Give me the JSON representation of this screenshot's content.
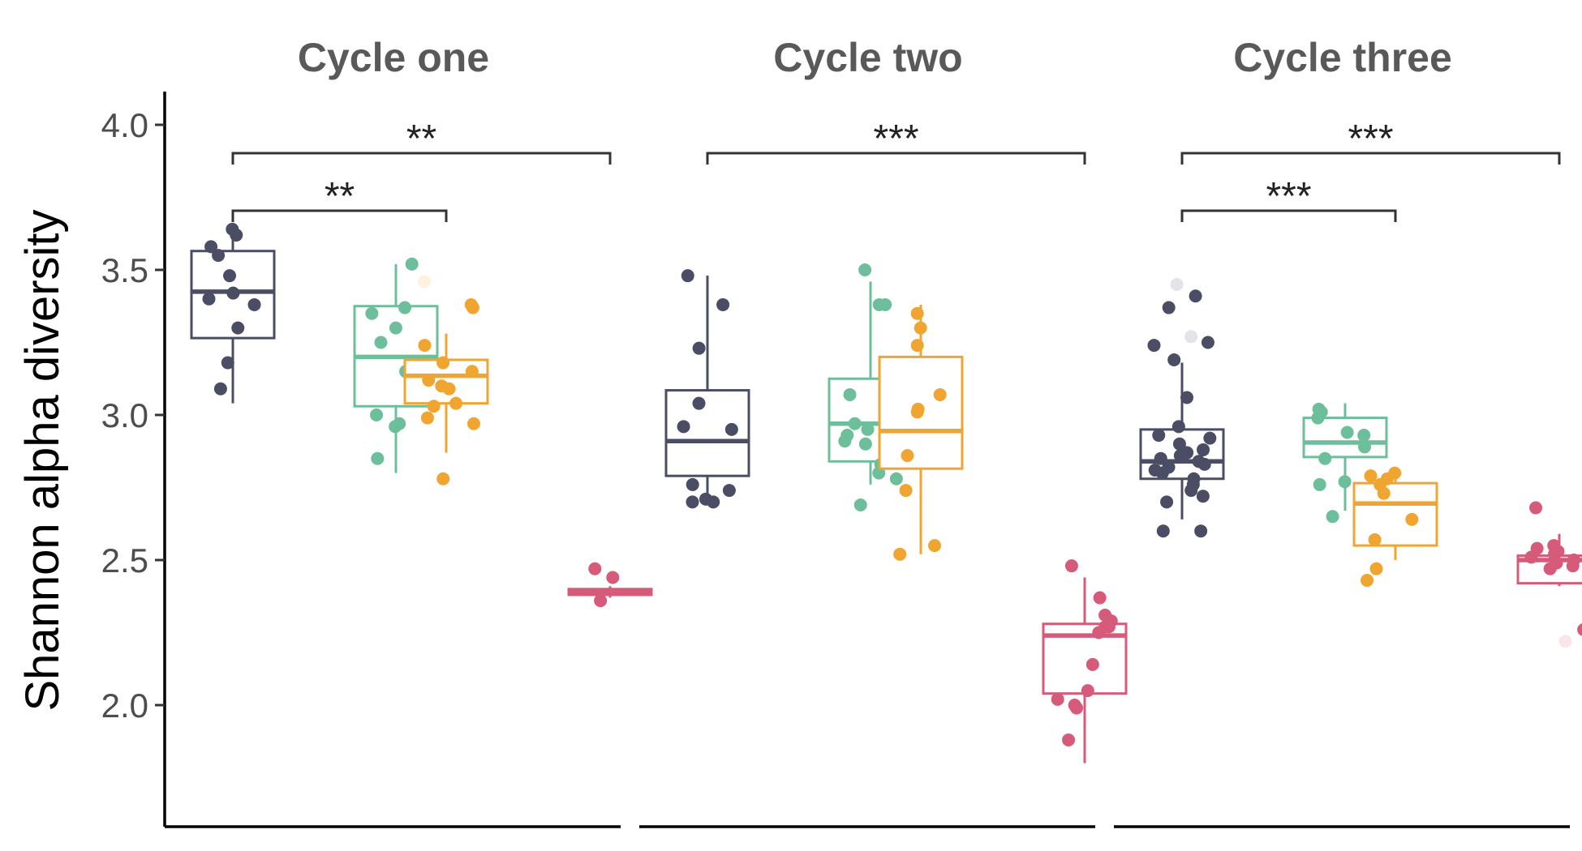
{
  "chart_data": {
    "type": "boxplot",
    "ylabel": "Shannon alpha diversity",
    "ylim": [
      1.6,
      4.1
    ],
    "yticks": [
      "2.0",
      "2.5",
      "3.0",
      "3.5",
      "4.0"
    ],
    "grid": false,
    "legend": "none",
    "group_colors": [
      "#4a4d63",
      "#6dbf9c",
      "#f0a530",
      "#d65a7a"
    ],
    "panels": [
      {
        "title": "Cycle one",
        "groups": [
          {
            "q1": 3.265,
            "median": 3.425,
            "q3": 3.565,
            "whisker_low": 3.04,
            "whisker_high": 3.64,
            "points": [
              3.64,
              3.62,
              3.58,
              3.55,
              3.48,
              3.42,
              3.4,
              3.38,
              3.3,
              3.18,
              3.09
            ],
            "outliers": []
          },
          {
            "q1": 3.03,
            "median": 3.2,
            "q3": 3.375,
            "whisker_low": 2.8,
            "whisker_high": 3.52,
            "points": [
              3.52,
              3.37,
              3.35,
              3.3,
              3.25,
              3.15,
              3.0,
              2.97,
              2.96,
              2.85
            ],
            "outliers": []
          },
          {
            "q1": 3.04,
            "median": 3.135,
            "q3": 3.19,
            "whisker_low": 2.87,
            "whisker_high": 3.28,
            "points": [
              3.38,
              3.37,
              3.24,
              3.18,
              3.15,
              3.12,
              3.1,
              3.09,
              3.04,
              3.03,
              2.99,
              2.97,
              2.78
            ],
            "outliers": [
              3.46
            ]
          },
          {
            "q1": 2.38,
            "median": 2.39,
            "q3": 2.4,
            "whisker_low": 2.37,
            "whisker_high": 2.41,
            "points": [
              2.47,
              2.44,
              2.36
            ],
            "outliers": []
          }
        ],
        "comparisons": [
          {
            "from": 0,
            "to": 3,
            "label": "**",
            "level": 2
          },
          {
            "from": 0,
            "to": 2,
            "label": "**",
            "level": 1
          }
        ]
      },
      {
        "title": "Cycle two",
        "groups": [
          {
            "q1": 2.79,
            "median": 2.91,
            "q3": 3.085,
            "whisker_low": 2.7,
            "whisker_high": 3.48,
            "points": [
              3.48,
              3.38,
              3.23,
              3.04,
              2.96,
              2.95,
              2.76,
              2.74,
              2.71,
              2.7,
              2.7
            ],
            "outliers": []
          },
          {
            "q1": 2.84,
            "median": 2.97,
            "q3": 3.125,
            "whisker_low": 2.76,
            "whisker_high": 3.46,
            "points": [
              3.5,
              3.38,
              3.38,
              3.07,
              2.97,
              2.95,
              2.93,
              2.91,
              2.9,
              2.83,
              2.8,
              2.78,
              2.69
            ],
            "outliers": []
          },
          {
            "q1": 2.815,
            "median": 2.945,
            "q3": 3.2,
            "whisker_low": 2.52,
            "whisker_high": 3.38,
            "points": [
              3.35,
              3.3,
              3.24,
              3.07,
              3.02,
              3.01,
              2.86,
              2.74,
              2.55,
              2.52
            ],
            "outliers": []
          },
          {
            "q1": 2.04,
            "median": 2.24,
            "q3": 2.28,
            "whisker_low": 1.8,
            "whisker_high": 2.44,
            "points": [
              2.48,
              2.37,
              2.31,
              2.29,
              2.27,
              2.27,
              2.25,
              2.14,
              2.05,
              2.02,
              2.0,
              1.99,
              1.88
            ],
            "outliers": []
          }
        ],
        "comparisons": [
          {
            "from": 0,
            "to": 3,
            "label": "***",
            "level": 2
          }
        ]
      },
      {
        "title": "Cycle three",
        "groups": [
          {
            "q1": 2.78,
            "median": 2.84,
            "q3": 2.95,
            "whisker_low": 2.64,
            "whisker_high": 3.18,
            "points": [
              3.41,
              3.37,
              3.25,
              3.24,
              3.19,
              3.06,
              2.96,
              2.93,
              2.92,
              2.9,
              2.88,
              2.87,
              2.86,
              2.85,
              2.84,
              2.83,
              2.82,
              2.81,
              2.8,
              2.78,
              2.76,
              2.74,
              2.72,
              2.7,
              2.6,
              2.6
            ],
            "outliers": [
              3.45,
              3.27
            ]
          },
          {
            "q1": 2.855,
            "median": 2.905,
            "q3": 2.99,
            "whisker_low": 2.67,
            "whisker_high": 3.04,
            "points": [
              3.02,
              3.01,
              2.99,
              2.94,
              2.93,
              2.89,
              2.85,
              2.77,
              2.76,
              2.65
            ],
            "outliers": []
          },
          {
            "q1": 2.55,
            "median": 2.695,
            "q3": 2.765,
            "whisker_low": 2.5,
            "whisker_high": 2.8,
            "points": [
              2.8,
              2.79,
              2.78,
              2.76,
              2.73,
              2.64,
              2.57,
              2.47,
              2.43
            ],
            "outliers": []
          },
          {
            "q1": 2.42,
            "median": 2.5,
            "q3": 2.515,
            "whisker_low": 2.41,
            "whisker_high": 2.59,
            "points": [
              2.68,
              2.55,
              2.54,
              2.53,
              2.52,
              2.51,
              2.5,
              2.49,
              2.48,
              2.47,
              2.26
            ],
            "outliers": [
              2.22
            ]
          }
        ],
        "comparisons": [
          {
            "from": 0,
            "to": 3,
            "label": "***",
            "level": 2
          },
          {
            "from": 0,
            "to": 2,
            "label": "***",
            "level": 1
          }
        ]
      }
    ]
  }
}
